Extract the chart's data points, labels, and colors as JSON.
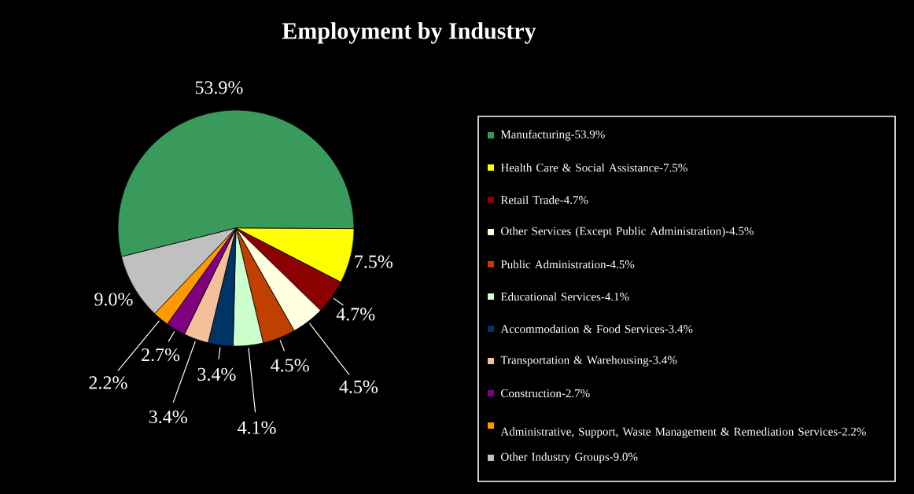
{
  "chart_data": {
    "type": "pie",
    "title": "Employment by Industry",
    "categories": [
      "Manufacturing-53.9%",
      "Health Care & Social Assistance-7.5%",
      "Retail Trade-4.7%",
      "Other Services (Except Public Administration)-4.5%",
      "Public Administration-4.5%",
      "Educational Services-4.1%",
      "Accommodation & Food Services-3.4%",
      "Transportation & Warehousing-3.4%",
      "Construction-2.7%",
      "Administrative, Support, Waste Management & Remediation Services-2.2%",
      "Other Industry Groups-9.0%"
    ],
    "values": [
      53.9,
      7.5,
      4.7,
      4.5,
      4.5,
      4.1,
      3.4,
      3.4,
      2.7,
      2.2,
      9.0
    ],
    "colors": [
      "#3a9a5c",
      "#ffff00",
      "#8b0000",
      "#ffffe0",
      "#c04000",
      "#ccffcc",
      "#003366",
      "#f4c09a",
      "#800080",
      "#ff9900",
      "#c0c0c0"
    ],
    "value_labels": [
      "53.9%",
      "7.5%",
      "4.7%",
      "4.5%",
      "4.5%",
      "4.1%",
      "3.4%",
      "3.4%",
      "2.7%",
      "2.2%",
      "9.0%"
    ],
    "legend": "right"
  }
}
